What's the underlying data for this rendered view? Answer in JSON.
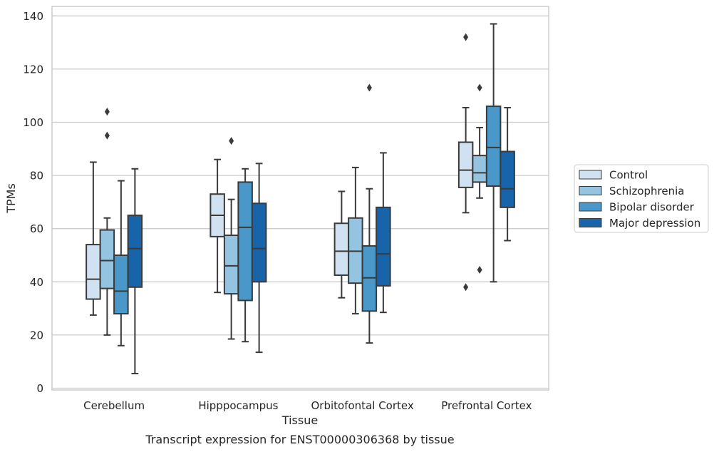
{
  "chart_data": {
    "type": "boxplot",
    "title": "Transcript expression for ENST00000306368 by tissue",
    "xlabel": "Tissue",
    "ylabel": "TPMs",
    "ylim": [
      0,
      140
    ],
    "yticks": [
      0,
      20,
      40,
      60,
      80,
      100,
      120,
      140
    ],
    "grid": "horizontal",
    "legend_position": "right",
    "categories": [
      "Cerebellum",
      "Hipppocampus",
      "Orbitofontal Cortex",
      "Prefrontal Cortex"
    ],
    "series": [
      {
        "name": "Control",
        "color": "#d0e1f2",
        "boxes": [
          {
            "whisker_low": 27.5,
            "q1": 33.5,
            "median": 41,
            "q3": 54,
            "whisker_high": 85,
            "outliers": []
          },
          {
            "whisker_low": 36,
            "q1": 57,
            "median": 65,
            "q3": 73,
            "whisker_high": 86,
            "outliers": []
          },
          {
            "whisker_low": 34,
            "q1": 42.5,
            "median": 51.5,
            "q3": 62,
            "whisker_high": 74,
            "outliers": []
          },
          {
            "whisker_low": 66,
            "q1": 75.5,
            "median": 82,
            "q3": 92.5,
            "whisker_high": 105.5,
            "outliers": [
              38,
              132
            ]
          }
        ]
      },
      {
        "name": "Schizophrenia",
        "color": "#94c4df",
        "boxes": [
          {
            "whisker_low": 20,
            "q1": 37.5,
            "median": 48,
            "q3": 59.5,
            "whisker_high": 64,
            "outliers": [
              95,
              104
            ]
          },
          {
            "whisker_low": 18.5,
            "q1": 35.5,
            "median": 46,
            "q3": 57.5,
            "whisker_high": 71,
            "outliers": [
              93
            ]
          },
          {
            "whisker_low": 28,
            "q1": 39.5,
            "median": 51.5,
            "q3": 64,
            "whisker_high": 83,
            "outliers": []
          },
          {
            "whisker_low": 71.5,
            "q1": 77.5,
            "median": 81,
            "q3": 87.5,
            "whisker_high": 98,
            "outliers": [
              44.5,
              113
            ]
          }
        ]
      },
      {
        "name": "Bipolar disorder",
        "color": "#4a98c9",
        "boxes": [
          {
            "whisker_low": 16,
            "q1": 28,
            "median": 36.5,
            "q3": 50,
            "whisker_high": 78,
            "outliers": []
          },
          {
            "whisker_low": 17.5,
            "q1": 33,
            "median": 60.5,
            "q3": 77.5,
            "whisker_high": 82.5,
            "outliers": []
          },
          {
            "whisker_low": 17,
            "q1": 29,
            "median": 41.5,
            "q3": 53.5,
            "whisker_high": 75,
            "outliers": [
              113
            ]
          },
          {
            "whisker_low": 40,
            "q1": 76,
            "median": 90.5,
            "q3": 106,
            "whisker_high": 137,
            "outliers": []
          }
        ]
      },
      {
        "name": "Major depression",
        "color": "#1764ab",
        "boxes": [
          {
            "whisker_low": 5.5,
            "q1": 38,
            "median": 52.5,
            "q3": 65,
            "whisker_high": 82.5,
            "outliers": []
          },
          {
            "whisker_low": 13.5,
            "q1": 40,
            "median": 52.5,
            "q3": 69.5,
            "whisker_high": 84.5,
            "outliers": []
          },
          {
            "whisker_low": 28.5,
            "q1": 38.5,
            "median": 50.5,
            "q3": 68,
            "whisker_high": 88.5,
            "outliers": []
          },
          {
            "whisker_low": 55.5,
            "q1": 68,
            "median": 75,
            "q3": 89,
            "whisker_high": 105.5,
            "outliers": []
          }
        ]
      }
    ]
  }
}
